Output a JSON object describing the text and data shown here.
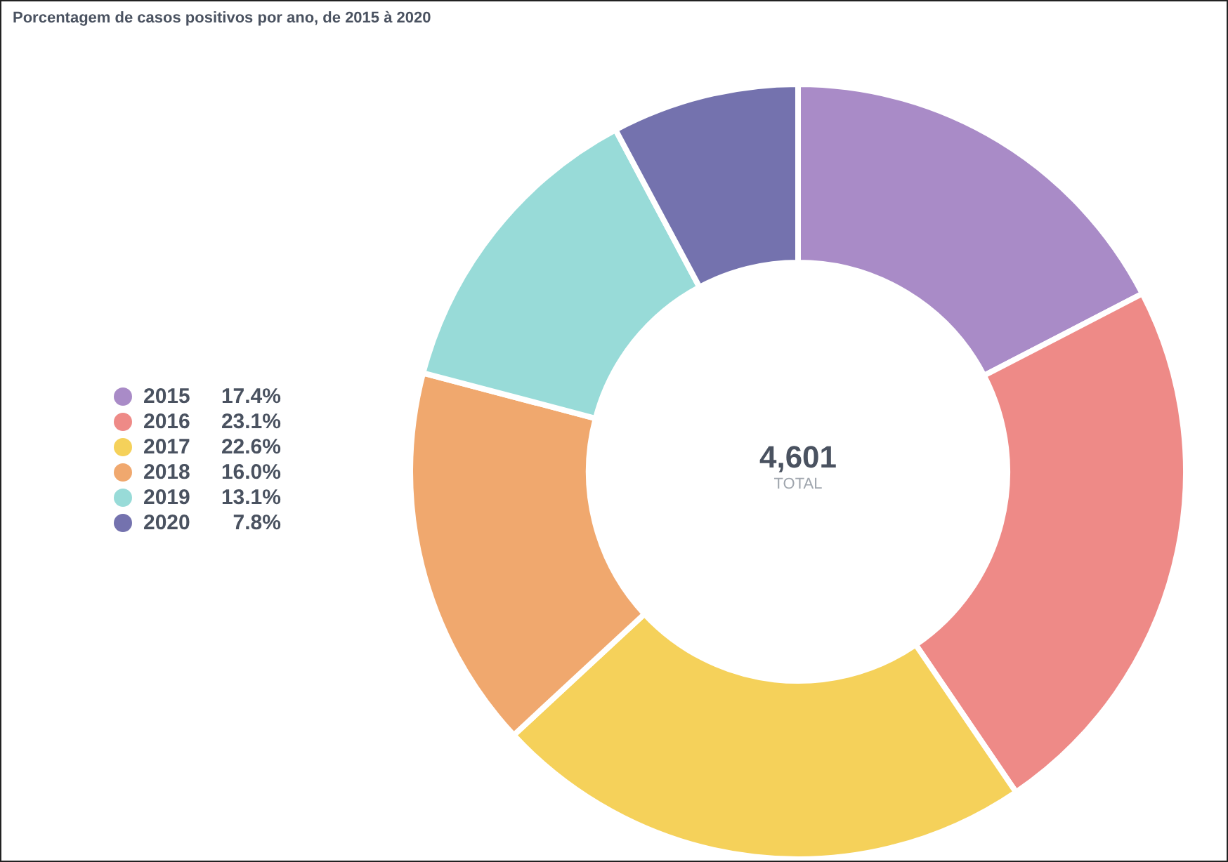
{
  "chart_data": {
    "type": "donut",
    "title": "Porcentagem de casos positivos por ano, de 2015 à 2020",
    "categories": [
      "2015",
      "2016",
      "2017",
      "2018",
      "2019",
      "2020"
    ],
    "values": [
      17.4,
      23.1,
      22.6,
      16.0,
      13.1,
      7.8
    ],
    "value_labels": [
      "17.4%",
      "23.1%",
      "22.6%",
      "16.0%",
      "13.1%",
      "7.8%"
    ],
    "colors": [
      "#a98bc7",
      "#ee8a87",
      "#f5d15a",
      "#f0a86e",
      "#98dbd8",
      "#7472ae"
    ],
    "annotations": [
      "4,601",
      "TOTAL"
    ],
    "legend": "left"
  }
}
